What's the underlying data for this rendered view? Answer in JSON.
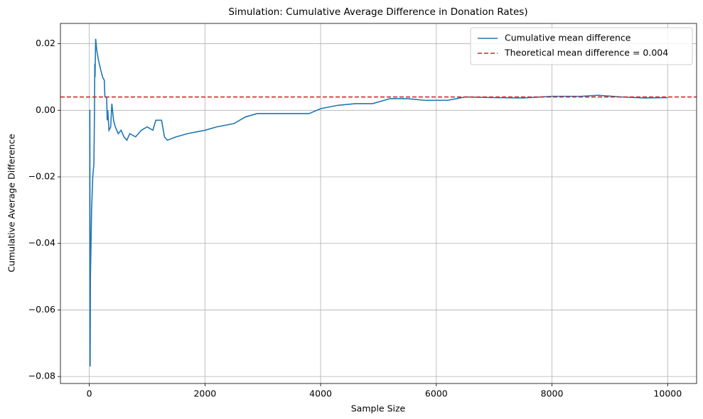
{
  "chart_data": {
    "type": "line",
    "title": "Simulation: Cumulative Average Difference in Donation Rates)",
    "x_label": "Sample Size",
    "y_label": "Cumulative Average Difference",
    "x": [
      1,
      10,
      15,
      20,
      40,
      60,
      80,
      90,
      95,
      100,
      110,
      130,
      160,
      200,
      230,
      260,
      270,
      300,
      310,
      320,
      340,
      370,
      390,
      420,
      450,
      500,
      550,
      600,
      650,
      700,
      800,
      900,
      1000,
      1100,
      1150,
      1250,
      1300,
      1350,
      1500,
      1700,
      2000,
      2200,
      2500,
      2700,
      2900,
      3200,
      3500,
      3800,
      4000,
      4300,
      4600,
      4900,
      5200,
      5500,
      5800,
      6200,
      6500,
      7000,
      7500,
      8000,
      8500,
      8800,
      9200,
      9600,
      10000
    ],
    "series": [
      {
        "name": "Cumulative mean difference",
        "color": "#1f77b4",
        "values": [
          0.0,
          0.0,
          -0.077,
          -0.05,
          -0.03,
          -0.02,
          -0.016,
          0.0,
          0.014,
          0.01,
          0.0215,
          0.018,
          0.015,
          0.012,
          0.01,
          0.009,
          0.004,
          0.004,
          -0.003,
          0.0,
          -0.006,
          -0.005,
          0.002,
          -0.003,
          -0.005,
          -0.007,
          -0.006,
          -0.008,
          -0.009,
          -0.007,
          -0.008,
          -0.006,
          -0.005,
          -0.006,
          -0.003,
          -0.003,
          -0.008,
          -0.009,
          -0.008,
          -0.007,
          -0.006,
          -0.005,
          -0.004,
          -0.002,
          -0.001,
          -0.001,
          -0.001,
          -0.001,
          0.0005,
          0.0015,
          0.002,
          0.002,
          0.0035,
          0.0035,
          0.003,
          0.003,
          0.004,
          0.0038,
          0.0037,
          0.0042,
          0.0042,
          0.0045,
          0.004,
          0.0037,
          0.0038
        ]
      }
    ],
    "hlines": [
      {
        "y": 0.004,
        "name": "Theoretical mean difference = 0.004",
        "color": "#d62728",
        "style": "dashed"
      }
    ],
    "xlim": [
      -499,
      10500
    ],
    "ylim": [
      -0.0821,
      0.0261
    ],
    "xticks": [
      0,
      2000,
      4000,
      6000,
      8000,
      10000
    ],
    "yticks": [
      {
        "value": -0.08,
        "label": "−0.08"
      },
      {
        "value": -0.06,
        "label": "−0.06"
      },
      {
        "value": -0.04,
        "label": "−0.04"
      },
      {
        "value": -0.02,
        "label": "−0.02"
      },
      {
        "value": 0,
        "label": "0.00"
      },
      {
        "value": 0.02,
        "label": "0.02"
      }
    ],
    "grid": true,
    "legend": "upper right"
  }
}
